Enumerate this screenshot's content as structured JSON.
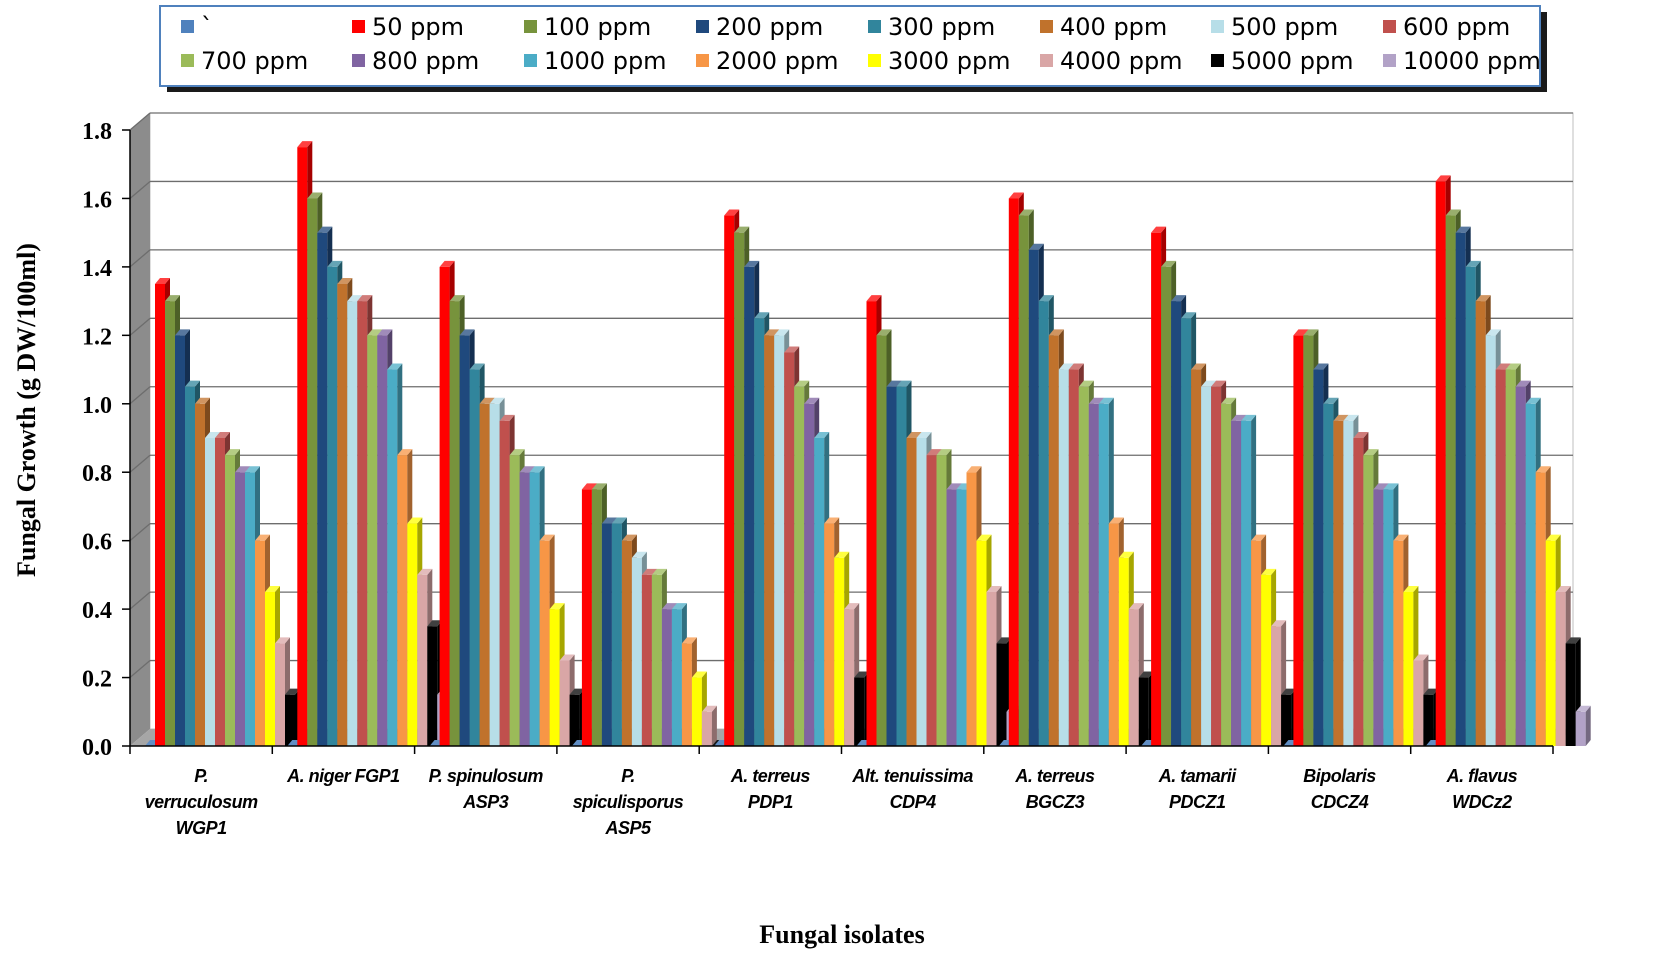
{
  "chart_data": {
    "type": "bar",
    "xlabel": "Fungal isolates",
    "ylabel": "Fungal Growth (g DW/100ml)",
    "ylim": [
      0,
      1.8
    ],
    "ytick_step": 0.2,
    "yticks": [
      "0.0",
      "0.2",
      "0.4",
      "0.6",
      "0.8",
      "1.0",
      "1.2",
      "1.4",
      "1.6",
      "1.8"
    ],
    "grid": true,
    "legend": "top",
    "categories": [
      [
        "P.",
        "verruculosum",
        "WGP1"
      ],
      [
        "A. niger FGP1"
      ],
      [
        "P. spinulosum",
        "ASP3"
      ],
      [
        "P.",
        "spiculisporus",
        "ASP5"
      ],
      [
        "A. terreus",
        "PDP1"
      ],
      [
        "Alt. tenuissima",
        "CDP4"
      ],
      [
        "A. terreus",
        "BGCZ3"
      ],
      [
        "A. tamarii",
        "PDCZ1"
      ],
      [
        "Bipolaris",
        "CDCZ4"
      ],
      [
        "A. flavus",
        "WDCz2"
      ]
    ],
    "series": [
      {
        "name": "`",
        "color": "#4F81BD",
        "values": [
          0,
          0,
          0,
          0,
          0,
          0,
          0,
          0,
          0,
          0
        ]
      },
      {
        "name": "50 ppm",
        "color": "#FF0000",
        "values": [
          1.35,
          1.75,
          1.4,
          0.75,
          1.55,
          1.3,
          1.6,
          1.5,
          1.2,
          1.65
        ]
      },
      {
        "name": "100 ppm",
        "color": "#77933C",
        "values": [
          1.3,
          1.6,
          1.3,
          0.75,
          1.5,
          1.2,
          1.55,
          1.4,
          1.2,
          1.55
        ]
      },
      {
        "name": "200 ppm",
        "color": "#1F497D",
        "values": [
          1.2,
          1.5,
          1.2,
          0.65,
          1.4,
          1.05,
          1.45,
          1.3,
          1.1,
          1.5
        ]
      },
      {
        "name": "300 ppm",
        "color": "#31859C",
        "values": [
          1.05,
          1.4,
          1.1,
          0.65,
          1.25,
          1.05,
          1.3,
          1.25,
          1.0,
          1.4
        ]
      },
      {
        "name": "400 ppm",
        "color": "#C0722C",
        "values": [
          1.0,
          1.35,
          1.0,
          0.6,
          1.2,
          0.9,
          1.2,
          1.1,
          0.95,
          1.3
        ]
      },
      {
        "name": "500 ppm",
        "color": "#B7DEE8",
        "values": [
          0.9,
          1.3,
          1.0,
          0.55,
          1.2,
          0.9,
          1.1,
          1.05,
          0.95,
          1.2
        ]
      },
      {
        "name": "600 ppm",
        "color": "#C0504D",
        "values": [
          0.9,
          1.3,
          0.95,
          0.5,
          1.15,
          0.85,
          1.1,
          1.05,
          0.9,
          1.1
        ]
      },
      {
        "name": "700 ppm",
        "color": "#9BBB59",
        "values": [
          0.85,
          1.2,
          0.85,
          0.5,
          1.05,
          0.85,
          1.05,
          1.0,
          0.85,
          1.1
        ]
      },
      {
        "name": "800 ppm",
        "color": "#8064A2",
        "values": [
          0.8,
          1.2,
          0.8,
          0.4,
          1.0,
          0.75,
          1.0,
          0.95,
          0.75,
          1.05
        ]
      },
      {
        "name": "1000 ppm",
        "color": "#4BACC6",
        "values": [
          0.8,
          1.1,
          0.8,
          0.4,
          0.9,
          0.75,
          1.0,
          0.95,
          0.75,
          1.0
        ]
      },
      {
        "name": "2000 ppm",
        "color": "#F79646",
        "values": [
          0.6,
          0.85,
          0.6,
          0.3,
          0.65,
          0.8,
          0.65,
          0.6,
          0.6,
          0.8
        ]
      },
      {
        "name": "3000 ppm",
        "color": "#FFFF00",
        "values": [
          0.45,
          0.65,
          0.4,
          0.2,
          0.55,
          0.6,
          0.55,
          0.5,
          0.45,
          0.6
        ]
      },
      {
        "name": "4000 ppm",
        "color": "#D9A6A6",
        "values": [
          0.3,
          0.5,
          0.25,
          0.1,
          0.4,
          0.45,
          0.4,
          0.35,
          0.25,
          0.45
        ]
      },
      {
        "name": "5000 ppm",
        "color": "#000000",
        "values": [
          0.15,
          0.35,
          0.15,
          0.0,
          0.2,
          0.3,
          0.2,
          0.15,
          0.15,
          0.3
        ]
      },
      {
        "name": "10000 ppm",
        "color": "#B2A2C7",
        "values": [
          0.0,
          0.15,
          0.0,
          0.0,
          0.0,
          0.1,
          0.0,
          0.0,
          0.0,
          0.1
        ]
      }
    ]
  }
}
